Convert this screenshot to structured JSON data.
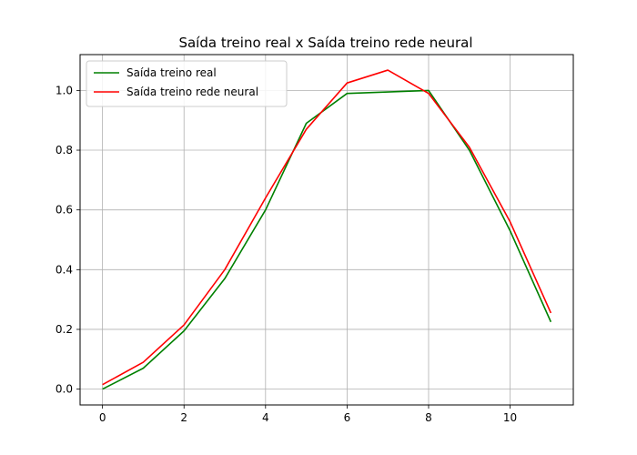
{
  "chart_data": {
    "type": "line",
    "title": "Saída treino real x Saída treino rede neural",
    "xlabel": "",
    "ylabel": "",
    "x": [
      0,
      1,
      2,
      3,
      4,
      5,
      6,
      7,
      8,
      9,
      10,
      11
    ],
    "series": [
      {
        "name": "Saída treino real",
        "color": "#008000",
        "values": [
          0.0,
          0.07,
          0.195,
          0.37,
          0.6,
          0.89,
          0.99,
          0.995,
          1.0,
          0.8,
          0.53,
          0.225
        ]
      },
      {
        "name": "Saída treino rede neural",
        "color": "#ff0000",
        "values": [
          0.015,
          0.09,
          0.215,
          0.4,
          0.64,
          0.87,
          1.025,
          1.068,
          0.99,
          0.81,
          0.56,
          0.255
        ]
      }
    ],
    "xlim": [
      -0.55,
      11.55
    ],
    "ylim": [
      -0.053,
      1.12
    ],
    "xticks": [
      0,
      2,
      4,
      6,
      8,
      10
    ],
    "xtick_labels": [
      "0",
      "2",
      "4",
      "6",
      "8",
      "10"
    ],
    "yticks": [
      0.0,
      0.2,
      0.4,
      0.6,
      0.8,
      1.0
    ],
    "ytick_labels": [
      "0.0",
      "0.2",
      "0.4",
      "0.6",
      "0.8",
      "1.0"
    ],
    "grid": true,
    "legend_position": "top-left"
  }
}
